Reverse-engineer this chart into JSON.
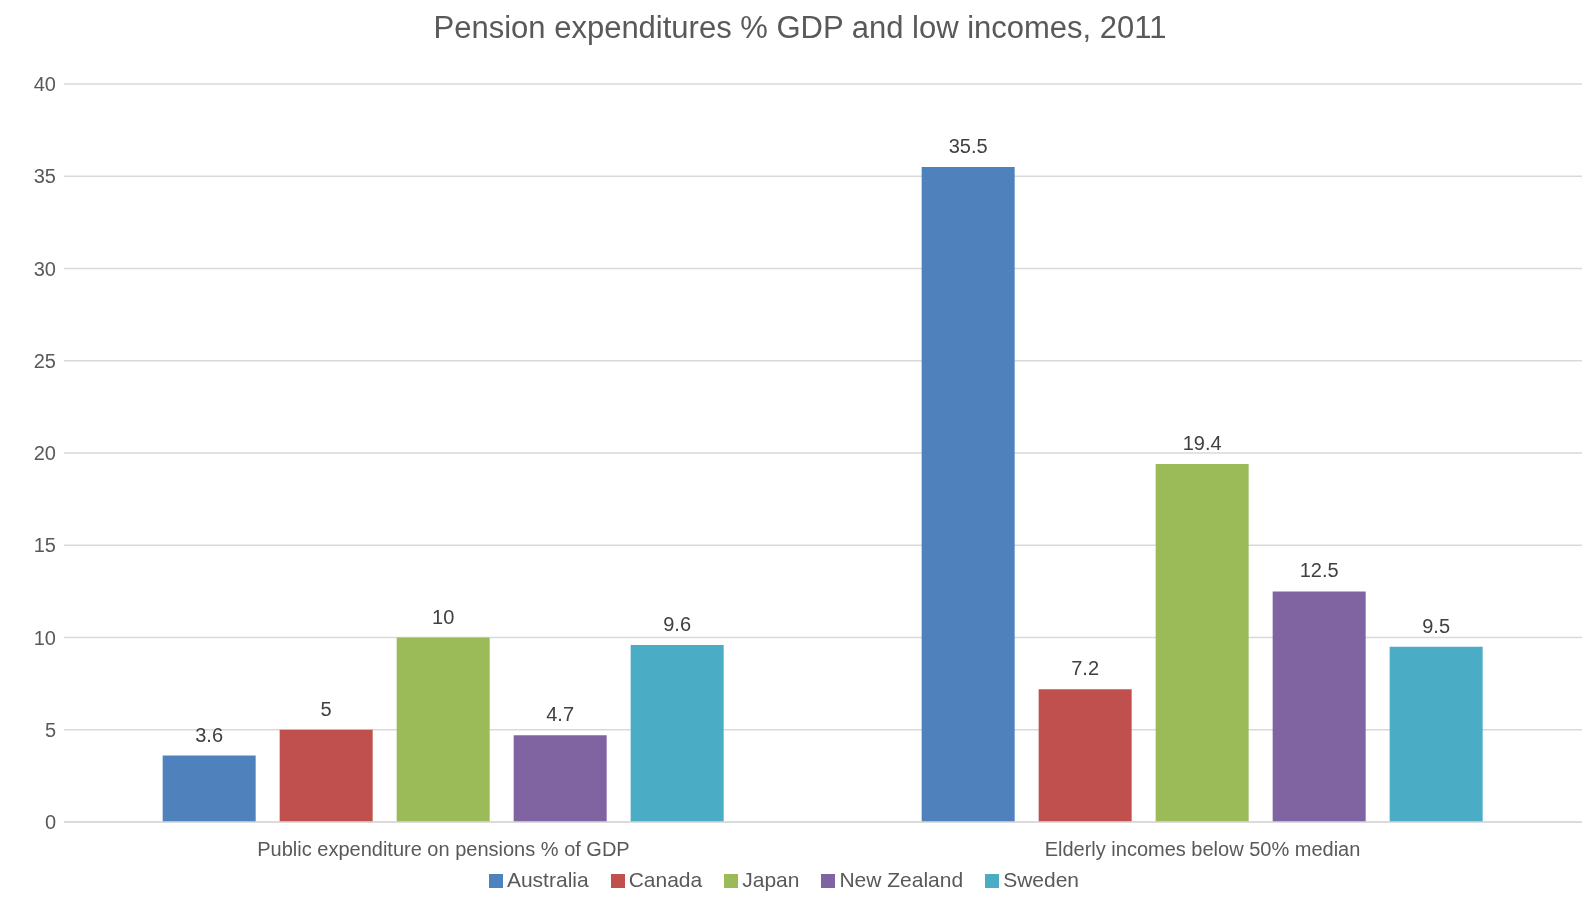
{
  "chart_data": {
    "type": "bar",
    "title": "Pension expenditures % GDP and low incomes, 2011",
    "categories": [
      "Public expenditure on pensions % of GDP",
      "Elderly incomes below 50% median"
    ],
    "series": [
      {
        "name": "Australia",
        "color": "#4f81bd",
        "values": [
          3.6,
          35.5
        ]
      },
      {
        "name": "Canada",
        "color": "#c0504d",
        "values": [
          5,
          7.2
        ]
      },
      {
        "name": "Japan",
        "color": "#9bbb59",
        "values": [
          10,
          19.4
        ]
      },
      {
        "name": "New Zealand",
        "color": "#8064a2",
        "values": [
          4.7,
          12.5
        ]
      },
      {
        "name": "Sweden",
        "color": "#4bacc6",
        "values": [
          9.6,
          9.5
        ]
      }
    ],
    "ylim": [
      0,
      40
    ],
    "yticks": [
      0,
      5,
      10,
      15,
      20,
      25,
      30,
      35,
      40
    ],
    "grid": "y",
    "legend": "bottom",
    "data_labels": true
  }
}
